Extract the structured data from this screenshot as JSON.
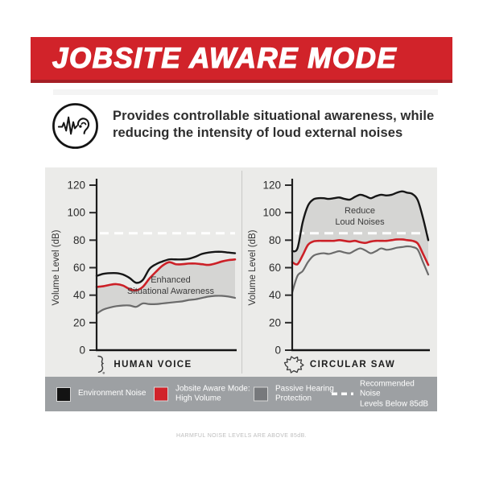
{
  "banner": {
    "title": "JOBSITE AWARE MODE",
    "bg_color": "#d1232a",
    "edge_color": "#a51e25"
  },
  "intro": {
    "icon": "ear-soundwave-icon",
    "line1": "Provides controllable situational awareness, while",
    "line2": "reducing the intensity of loud external noises"
  },
  "chart_data": [
    {
      "type": "line",
      "xlabel": "HUMAN VOICE",
      "xlabel_icon": "human-voice-icon",
      "ylabel": "Volume Level (dB)",
      "ylim": [
        0,
        120
      ],
      "yticks": [
        0,
        20,
        40,
        60,
        80,
        100,
        120
      ],
      "grid": false,
      "reference_line": {
        "value": 85,
        "color": "#ffffff",
        "style": "dashed",
        "label": "Recommended Noise Levels Below 85dB"
      },
      "annotation_lines": [
        "Enhanced",
        "Situational Awareness"
      ],
      "band": {
        "upper": 1,
        "lower": 2,
        "color": "#d5d5d3",
        "label": "Enhanced Situational Awareness"
      },
      "series": [
        {
          "name": "Environment Noise",
          "color": "#161616",
          "width": 2.4,
          "values": [
            54,
            55.5,
            56,
            56,
            55,
            52.5,
            49,
            51,
            59,
            62.5,
            64.5,
            66,
            66,
            66,
            66.5,
            68,
            70,
            71,
            71.5,
            71.5,
            71,
            70.5
          ]
        },
        {
          "name": "Jobsite Aware Mode: High Volume",
          "color": "#cc2027",
          "width": 2.6,
          "values": [
            46,
            46.5,
            47.5,
            48,
            47,
            44.5,
            43.5,
            46,
            52,
            57,
            61.5,
            64,
            62.5,
            62.5,
            63,
            63,
            62.5,
            62,
            63,
            64.5,
            65.5,
            66
          ]
        },
        {
          "name": "Passive Hearing Protection",
          "color": "#6b6b6b",
          "width": 2.2,
          "values": [
            26.5,
            29.5,
            31,
            32,
            32.5,
            32.5,
            31.5,
            34,
            33.5,
            33.5,
            34,
            34.5,
            35,
            35.5,
            36.5,
            37,
            38,
            39,
            39.5,
            39.5,
            39,
            38
          ]
        }
      ]
    },
    {
      "type": "line",
      "xlabel": "CIRCULAR SAW",
      "xlabel_icon": "circular-saw-icon",
      "ylabel": "Volume Level (dB)",
      "ylim": [
        0,
        120
      ],
      "yticks": [
        0,
        20,
        40,
        60,
        80,
        100,
        120
      ],
      "grid": false,
      "reference_line": {
        "value": 85,
        "color": "#ffffff",
        "style": "dashed",
        "label": "Recommended Noise Levels Below 85dB"
      },
      "annotation_lines": [
        "Reduce",
        "Loud Noises"
      ],
      "band": {
        "upper": 0,
        "lower": 1,
        "color": "#d5d5d3",
        "label": "Reduce Loud Noises"
      },
      "series": [
        {
          "name": "Environment Noise",
          "color": "#161616",
          "width": 2.4,
          "values": [
            72,
            74,
            93,
            105,
            109.5,
            110.5,
            110.5,
            110,
            110.5,
            111,
            110,
            109.5,
            111.5,
            113,
            112,
            110.5,
            112,
            113,
            112.5,
            113,
            114.5,
            115.5,
            114.5,
            113.5,
            109,
            96,
            80
          ]
        },
        {
          "name": "Jobsite Aware Mode: High Volume",
          "color": "#cc2027",
          "width": 2.6,
          "values": [
            64,
            62.5,
            69,
            76.5,
            79,
            79.5,
            79.5,
            79.5,
            79.5,
            80,
            79.5,
            79,
            79.5,
            78.5,
            78,
            79,
            79.5,
            79.5,
            79.5,
            80,
            80.5,
            80.5,
            80,
            79.5,
            77.5,
            70,
            62
          ]
        },
        {
          "name": "Passive Hearing Protection",
          "color": "#6b6b6b",
          "width": 2.2,
          "values": [
            42,
            54,
            57.5,
            64,
            68.5,
            70,
            70.5,
            70,
            71,
            72,
            71,
            70.5,
            72.5,
            74,
            72.5,
            70.5,
            72,
            74,
            73,
            73.5,
            74.5,
            75,
            75.5,
            75,
            73,
            64,
            55
          ]
        }
      ]
    }
  ],
  "legend": {
    "bg_color": "#9da0a3",
    "items": [
      {
        "name": "environment-noise",
        "swatch": "square",
        "color": "#131313",
        "lines": [
          "Environment Noise"
        ]
      },
      {
        "name": "jobsite-aware-mode-high-volume",
        "swatch": "square",
        "color": "#d1232a",
        "lines": [
          "Jobsite Aware Mode:",
          "High Volume"
        ]
      },
      {
        "name": "passive-hearing-protection",
        "swatch": "square",
        "color": "#77797c",
        "lines": [
          "Passive Hearing",
          "Protection"
        ]
      },
      {
        "name": "recommended-noise-levels",
        "swatch": "dashes",
        "color": "#ffffff",
        "lines": [
          "Recommended Noise",
          "Levels Below 85dB"
        ]
      }
    ]
  },
  "footnote": "HARMFUL NOISE LEVELS ARE ABOVE 85dB."
}
